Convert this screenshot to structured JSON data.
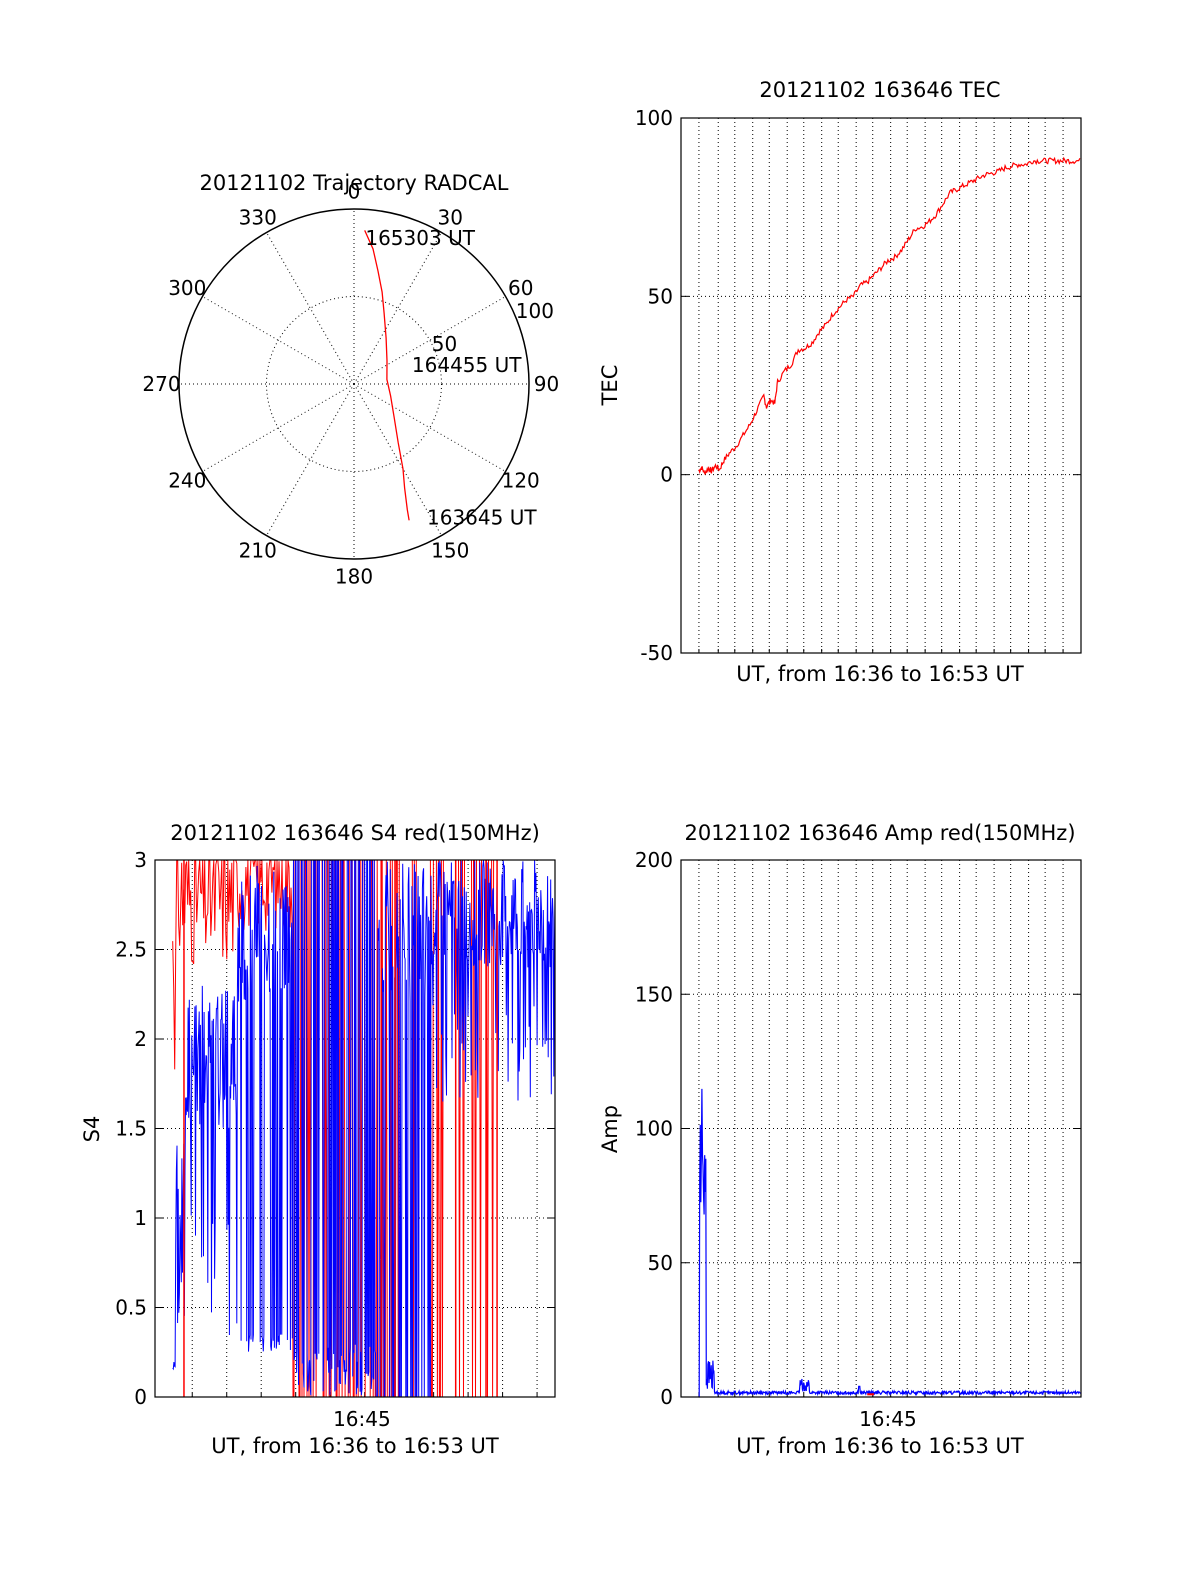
{
  "colors": {
    "red": "#ff0000",
    "blue": "#0000ff",
    "axis": "#000000"
  },
  "chart_data": [
    {
      "id": "trajectory",
      "type": "polar",
      "title": "20121102 Trajectory RADCAL",
      "angle_labels": [
        "0",
        "30",
        "60",
        "90",
        "120",
        "150",
        "180",
        "210",
        "240",
        "270",
        "300",
        "330"
      ],
      "radial_ticks": [
        {
          "label": "50",
          "value": 50
        },
        {
          "label": "100",
          "value": 100
        }
      ],
      "radial_max": 100,
      "grid": true,
      "series": [
        {
          "color": "red",
          "points": [
            {
              "az": 4,
              "r": 88
            },
            {
              "az": 8,
              "r": 78
            },
            {
              "az": 12,
              "r": 66
            },
            {
              "az": 17,
              "r": 55
            },
            {
              "az": 23,
              "r": 44
            },
            {
              "az": 35,
              "r": 32
            },
            {
              "az": 55,
              "r": 23
            },
            {
              "az": 82,
              "r": 19
            },
            {
              "az": 108,
              "r": 22
            },
            {
              "az": 130,
              "r": 30
            },
            {
              "az": 143,
              "r": 42
            },
            {
              "az": 150,
              "r": 56
            },
            {
              "az": 154,
              "r": 66
            },
            {
              "az": 157,
              "r": 78
            },
            {
              "az": 158,
              "r": 84
            }
          ]
        }
      ],
      "annotations": [
        {
          "text": "165303 UT",
          "az": 6,
          "r": 84
        },
        {
          "text": "164455 UT",
          "az": 73,
          "r": 37
        },
        {
          "text": "163645 UT",
          "az": 150,
          "r": 88
        }
      ]
    },
    {
      "id": "tec",
      "type": "line",
      "title": "20121102 163646 TEC",
      "xlabel": "UT, from 16:36 to 16:53 UT",
      "ylabel": "TEC",
      "xlim": [
        16.6,
        16.89
      ],
      "ylim": [
        -50,
        100
      ],
      "yticks": [
        -50,
        0,
        50,
        100
      ],
      "xticks": [],
      "vgrid_x": [
        16.613,
        16.627,
        16.639,
        16.652,
        16.664,
        16.677,
        16.689,
        16.702,
        16.714,
        16.727,
        16.739,
        16.752,
        16.764,
        16.777,
        16.789,
        16.802,
        16.814,
        16.827,
        16.839,
        16.852,
        16.864,
        16.877
      ],
      "grid": true,
      "series": [
        {
          "color": "red",
          "x": [
            16.6128,
            16.615,
            16.617,
            16.62,
            16.622,
            16.625,
            16.628,
            16.631,
            16.635,
            16.64,
            16.645,
            16.65,
            16.655,
            16.66,
            16.662,
            16.665,
            16.668,
            16.67,
            16.675,
            16.68,
            16.685,
            16.69,
            16.695,
            16.7,
            16.705,
            16.71,
            16.715,
            16.72,
            16.725,
            16.73,
            16.735,
            16.74,
            16.745,
            16.75,
            16.755,
            16.76,
            16.765,
            16.77,
            16.775,
            16.78,
            16.785,
            16.79,
            16.795,
            16.8,
            16.805,
            16.81,
            16.815,
            16.82,
            16.825,
            16.83,
            16.835,
            16.84,
            16.845,
            16.85,
            16.855,
            16.86,
            16.865,
            16.87,
            16.875,
            16.88,
            16.885,
            16.89
          ],
          "y": [
            1,
            2,
            0.5,
            1.8,
            1,
            2.5,
            1.5,
            4,
            6,
            8,
            11,
            14,
            18,
            22,
            19,
            21,
            20,
            26,
            29,
            31,
            35,
            35.5,
            37,
            40,
            42,
            45,
            47,
            49,
            50,
            53,
            54,
            56,
            58,
            60,
            61,
            63,
            66,
            69,
            69.5,
            71,
            73,
            76,
            79,
            80,
            81,
            82,
            83,
            84,
            84.5,
            85,
            86,
            86.5,
            87,
            87,
            88,
            88,
            88,
            88,
            88,
            88,
            88,
            88
          ]
        }
      ]
    },
    {
      "id": "s4",
      "type": "line",
      "title": "20121102 163646 S4 red(150MHz)",
      "xlabel": "UT, from 16:36 to 16:53 UT",
      "ylabel": "S4",
      "xlim": [
        16.6,
        16.89
      ],
      "ylim": [
        0,
        3
      ],
      "yticks": [
        0,
        0.5,
        1,
        1.5,
        2,
        2.5,
        3
      ],
      "xticks": [
        {
          "value": 16.75,
          "label": "16:45"
        }
      ],
      "vgrid_x": [
        16.627,
        16.652,
        16.677,
        16.702,
        16.727,
        16.752,
        16.777,
        16.802,
        16.827,
        16.852,
        16.877
      ],
      "grid": true,
      "series": [
        {
          "color": "red",
          "name": "",
          "x_start": 16.6128,
          "x_end": 16.86,
          "profile": "s4-red"
        },
        {
          "color": "blue",
          "name": "",
          "x_start": 16.6128,
          "x_end": 16.89,
          "profile": "s4-blue"
        }
      ]
    },
    {
      "id": "amp",
      "type": "line",
      "title": "20121102 163646 Amp red(150MHz)",
      "xlabel": "UT, from 16:36 to 16:53 UT",
      "ylabel": "Amp",
      "xlim": [
        16.6,
        16.89
      ],
      "ylim": [
        0,
        200
      ],
      "yticks": [
        0,
        50,
        100,
        150,
        200
      ],
      "xticks": [
        {
          "value": 16.75,
          "label": "16:45"
        }
      ],
      "vgrid_x": [
        16.613,
        16.627,
        16.639,
        16.652,
        16.664,
        16.677,
        16.689,
        16.702,
        16.714,
        16.727,
        16.739,
        16.752,
        16.764,
        16.777,
        16.789,
        16.802,
        16.814,
        16.827,
        16.839,
        16.852,
        16.864,
        16.877
      ],
      "grid": true,
      "series": [
        {
          "color": "blue",
          "name": "",
          "x_start": 16.6128,
          "x_end": 16.89,
          "profile": "amp-blue"
        },
        {
          "color": "red",
          "name": "",
          "x_start": 16.6128,
          "x_end": 16.89,
          "profile": "amp-red"
        }
      ]
    }
  ]
}
